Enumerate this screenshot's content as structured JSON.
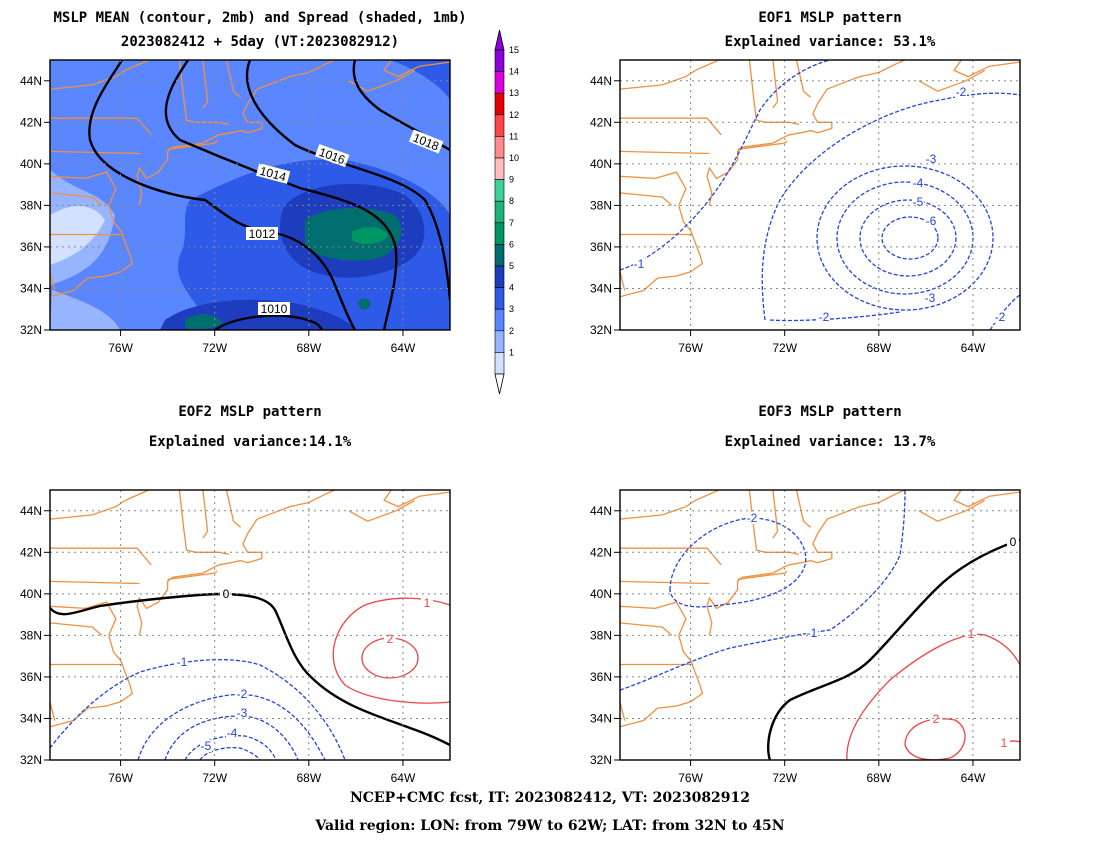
{
  "panels": [
    {
      "title1": "MSLP MEAN (contour, 2mb) and Spread (shaded, 1mb)",
      "title2": "2023082412 + 5day (VT:2023082912)"
    },
    {
      "title1": "EOF1 MSLP pattern",
      "title2": "Explained variance: 53.1%"
    },
    {
      "title1": "EOF2 MSLP pattern",
      "title2": "Explained variance:14.1%"
    },
    {
      "title1": "EOF3 MSLP pattern",
      "title2": "Explained variance: 13.7%"
    }
  ],
  "footer": {
    "line1": "NCEP+CMC fcst, IT: 2023082412, VT: 2023082912",
    "line2": "Valid region: LON: from 79W to 62W; LAT: from 32N to 45N"
  },
  "chart_data": {
    "type": "heatmap",
    "region": {
      "lon": [
        -79,
        -62
      ],
      "lat": [
        32,
        45
      ]
    },
    "xticks": [
      "76W",
      "72W",
      "68W",
      "64W"
    ],
    "yticks": [
      "32N",
      "34N",
      "36N",
      "38N",
      "40N",
      "42N",
      "44N"
    ],
    "grid": true,
    "colorbar": {
      "levels": [
        "1",
        "2",
        "3",
        "4",
        "5",
        "6",
        "7",
        "8",
        "9",
        "10",
        "11",
        "12",
        "13",
        "14",
        "15"
      ],
      "colors": [
        "#d2e1ff",
        "#96b4ff",
        "#5a87ff",
        "#2d5ae6",
        "#1e3cbe",
        "#006e6e",
        "#009664",
        "#1eb478",
        "#3cd296",
        "#ffbebe",
        "#ff8c8c",
        "#ff4646",
        "#e60000",
        "#dc00dc",
        "#8c00dc"
      ]
    },
    "contours": {
      "mean": [
        {
          "value": 1010,
          "label": "1010"
        },
        {
          "value": 1012,
          "label": "1012"
        },
        {
          "value": 1014,
          "label": "1014"
        },
        {
          "value": 1016,
          "label": "1016"
        },
        {
          "value": 1018,
          "label": "1018"
        }
      ],
      "eof1": {
        "labels": [
          "-1",
          "-2",
          "-2",
          "-2",
          "-3",
          "-3",
          "-4",
          "-5",
          "-6"
        ]
      },
      "eof2": {
        "labels": [
          "0",
          "-1",
          "-2",
          "-3",
          "-4",
          "-5",
          "1",
          "2"
        ]
      },
      "eof3": {
        "labels": [
          "0",
          "-2",
          "-1",
          "1",
          "2",
          "1"
        ]
      }
    },
    "colors": {
      "negative": "#2244dd",
      "positive": "#ee4444",
      "zero": "#000000",
      "coast": "#f09040"
    }
  }
}
